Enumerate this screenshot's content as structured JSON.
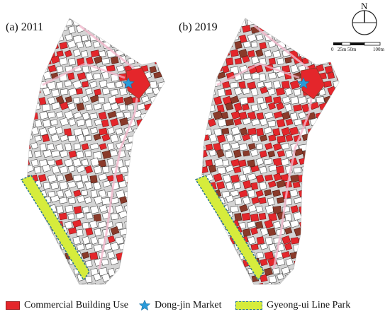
{
  "panels": [
    {
      "label": "(a) 2011"
    },
    {
      "label": "(b) 2019"
    }
  ],
  "compass": {
    "north_label": "N"
  },
  "scale_bar": {
    "labels": [
      "0",
      "25m",
      "50m",
      "100m"
    ]
  },
  "legend": [
    {
      "label": "Commercial Building Use",
      "color": "#e4262b"
    },
    {
      "label": "Dong-jin Market",
      "color": "#2a9ad8",
      "icon": "star-icon"
    },
    {
      "label": "Gyeong-ui Line Park",
      "color": "#d6ec3c"
    }
  ],
  "colors": {
    "commercial": "#e4262b",
    "commercial_dark": "#8a3a2a",
    "block": "#d4d4d4",
    "road_edge": "#f2b8cc",
    "park": "#d6ec3c",
    "park_edge": "#2f7a8c",
    "market_star": "#2a9ad8"
  }
}
